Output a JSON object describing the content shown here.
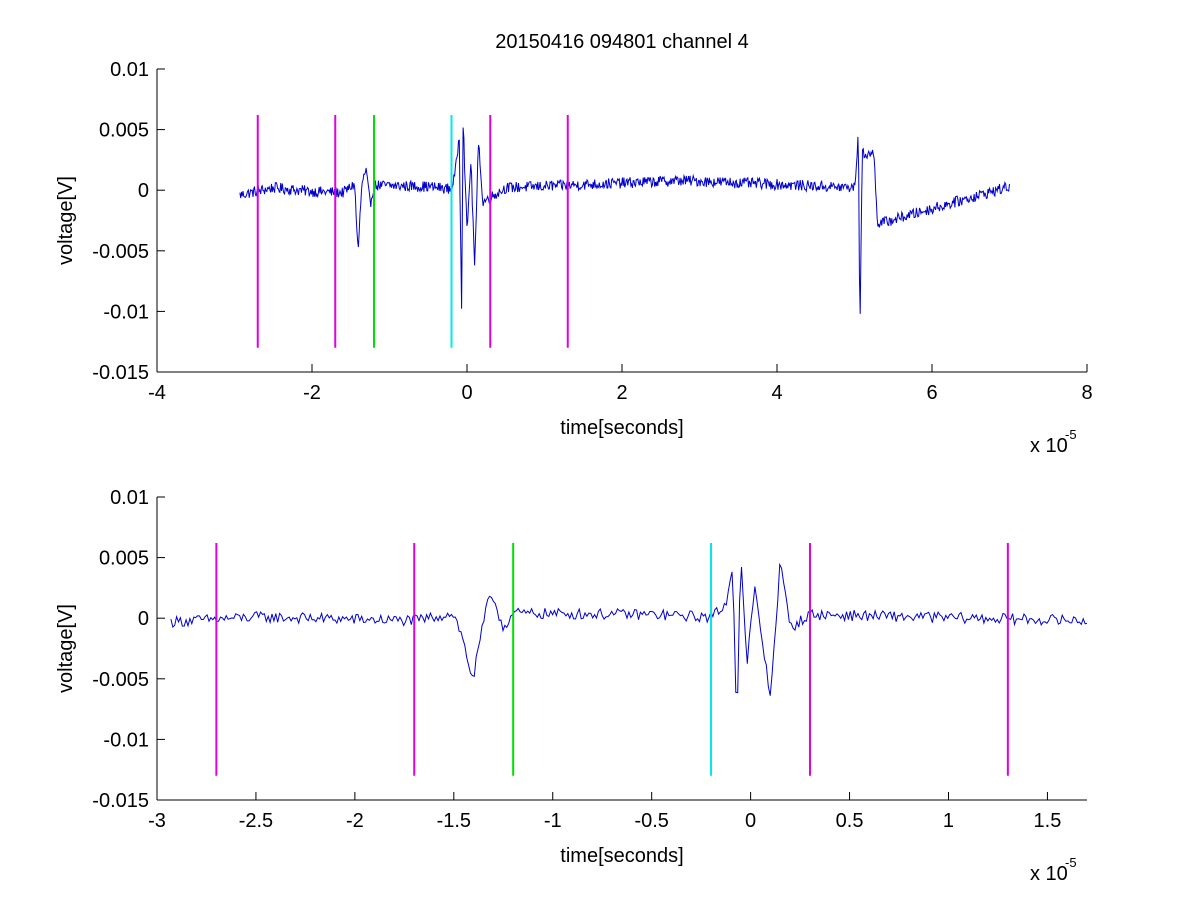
{
  "chart_data": [
    {
      "type": "line",
      "title": "20150416 094801 channel 4",
      "xlabel": "time[seconds]",
      "ylabel": "voltage[V]",
      "x_multiplier_label": "x 10",
      "x_multiplier_exponent": "-5",
      "xlim": [
        -4e-05,
        8e-05
      ],
      "ylim": [
        -0.015,
        0.01
      ],
      "xticks": [
        -4,
        -2,
        0,
        2,
        4,
        6,
        8
      ],
      "xtick_labels": [
        "-4",
        "-2",
        "0",
        "2",
        "4",
        "6",
        "8"
      ],
      "yticks": [
        0.01,
        0.005,
        0,
        -0.005,
        -0.01,
        -0.015
      ],
      "ytick_labels": [
        "0.01",
        "0.005",
        "0",
        "-0.005",
        "-0.01",
        "-0.015"
      ],
      "grid": false,
      "series": [
        {
          "color": "#0000cc",
          "x_range": [
            -2.93e-05,
            7e-05
          ],
          "points": [
            [
              -2.93e-05,
              -0.0004
            ],
            [
              -2.5e-05,
              0.0002
            ],
            [
              -2e-05,
              -0.0001
            ],
            [
              -1.6e-05,
              -0.0002
            ],
            [
              -1.45e-05,
              0.0005
            ],
            [
              -1.42e-05,
              -0.0035
            ],
            [
              -1.4e-05,
              -0.0049
            ],
            [
              -1.38e-05,
              -0.002
            ],
            [
              -1.35e-05,
              0.0008
            ],
            [
              -1.3e-05,
              0.0015
            ],
            [
              -1.25e-05,
              -0.0012
            ],
            [
              -1.2e-05,
              0.0004
            ],
            [
              -5e-06,
              0.0003
            ],
            [
              -2e-06,
              0.0001
            ],
            [
              -1.5e-06,
              0.0015
            ],
            [
              -1e-06,
              0.0045
            ],
            [
              -7e-07,
              -0.0095
            ],
            [
              -5e-07,
              0.0058
            ],
            [
              0.0,
              -0.0035
            ],
            [
              5e-07,
              0.0025
            ],
            [
              1e-06,
              -0.0065
            ],
            [
              1.5e-06,
              0.0045
            ],
            [
              2e-06,
              -0.001
            ],
            [
              5e-06,
              0.0002
            ],
            [
              2.8e-05,
              0.0008
            ],
            [
              5e-05,
              0.0002
            ],
            [
              5.05e-05,
              0.0045
            ],
            [
              5.07e-05,
              -0.0117
            ],
            [
              5.1e-05,
              0.003
            ],
            [
              5.25e-05,
              0.003
            ],
            [
              5.3e-05,
              -0.0028
            ],
            [
              7e-05,
              0.0003
            ]
          ]
        }
      ],
      "markers": [
        {
          "x": -2.7e-05,
          "color": "#e000e0",
          "y_from": -0.013,
          "y_to": 0.0062
        },
        {
          "x": -1.7e-05,
          "color": "#e000e0",
          "y_from": -0.013,
          "y_to": 0.0062
        },
        {
          "x": -1.2e-05,
          "color": "#00e000",
          "y_from": -0.013,
          "y_to": 0.0062
        },
        {
          "x": -2e-06,
          "color": "#00e8e8",
          "y_from": -0.013,
          "y_to": 0.0062
        },
        {
          "x": 3e-06,
          "color": "#e000e0",
          "y_from": -0.013,
          "y_to": 0.0062
        },
        {
          "x": 1.3e-05,
          "color": "#e000e0",
          "y_from": -0.013,
          "y_to": 0.0062
        }
      ]
    },
    {
      "type": "line",
      "title": "",
      "xlabel": "time[seconds]",
      "ylabel": "voltage[V]",
      "x_multiplier_label": "x 10",
      "x_multiplier_exponent": "-5",
      "xlim": [
        -3e-05,
        1.7e-05
      ],
      "ylim": [
        -0.015,
        0.01
      ],
      "xticks": [
        -3,
        -2.5,
        -2,
        -1.5,
        -1,
        -0.5,
        0,
        0.5,
        1,
        1.5
      ],
      "xtick_labels": [
        "-3",
        "-2.5",
        "-2",
        "-1.5",
        "-1",
        "-0.5",
        "0",
        "0.5",
        "1",
        "1.5"
      ],
      "yticks": [
        0.01,
        0.005,
        0,
        -0.005,
        -0.01,
        -0.015
      ],
      "ytick_labels": [
        "0.01",
        "0.005",
        "0",
        "-0.005",
        "-0.01",
        "-0.015"
      ],
      "grid": false,
      "series": [
        {
          "color": "#0000cc",
          "x_range": [
            -2.93e-05,
            1.7e-05
          ],
          "points": [
            [
              -2.93e-05,
              -0.0003
            ],
            [
              -2.5e-05,
              0.0001
            ],
            [
              -1.7e-05,
              -0.0002
            ],
            [
              -1.5e-05,
              0.0004
            ],
            [
              -1.45e-05,
              -0.002
            ],
            [
              -1.42e-05,
              -0.0042
            ],
            [
              -1.4e-05,
              -0.0049
            ],
            [
              -1.37e-05,
              -0.002
            ],
            [
              -1.33e-05,
              0.0012
            ],
            [
              -1.3e-05,
              0.0017
            ],
            [
              -1.25e-05,
              -0.0008
            ],
            [
              -1.2e-05,
              0.0004
            ],
            [
              -5e-06,
              0.0003
            ],
            [
              -2e-06,
              0.0001
            ],
            [
              -1.2e-06,
              0.0012
            ],
            [
              -9e-07,
              0.0047
            ],
            [
              -7e-07,
              -0.0095
            ],
            [
              -5e-07,
              0.0058
            ],
            [
              -2e-07,
              -0.004
            ],
            [
              2e-07,
              0.0025
            ],
            [
              1e-06,
              -0.0065
            ],
            [
              1.5e-06,
              0.0047
            ],
            [
              2e-06,
              -0.0008
            ],
            [
              3e-06,
              0.0003
            ],
            [
              1.7e-05,
              -0.0002
            ]
          ]
        }
      ],
      "markers": [
        {
          "x": -2.7e-05,
          "color": "#e000e0",
          "y_from": -0.013,
          "y_to": 0.0062
        },
        {
          "x": -1.7e-05,
          "color": "#e000e0",
          "y_from": -0.013,
          "y_to": 0.0062
        },
        {
          "x": -1.2e-05,
          "color": "#00e000",
          "y_from": -0.013,
          "y_to": 0.0062
        },
        {
          "x": -2e-06,
          "color": "#00e8e8",
          "y_from": -0.013,
          "y_to": 0.0062
        },
        {
          "x": 3e-06,
          "color": "#e000e0",
          "y_from": -0.013,
          "y_to": 0.0062
        },
        {
          "x": 1.3e-05,
          "color": "#e000e0",
          "y_from": -0.013,
          "y_to": 0.0062
        }
      ]
    }
  ]
}
